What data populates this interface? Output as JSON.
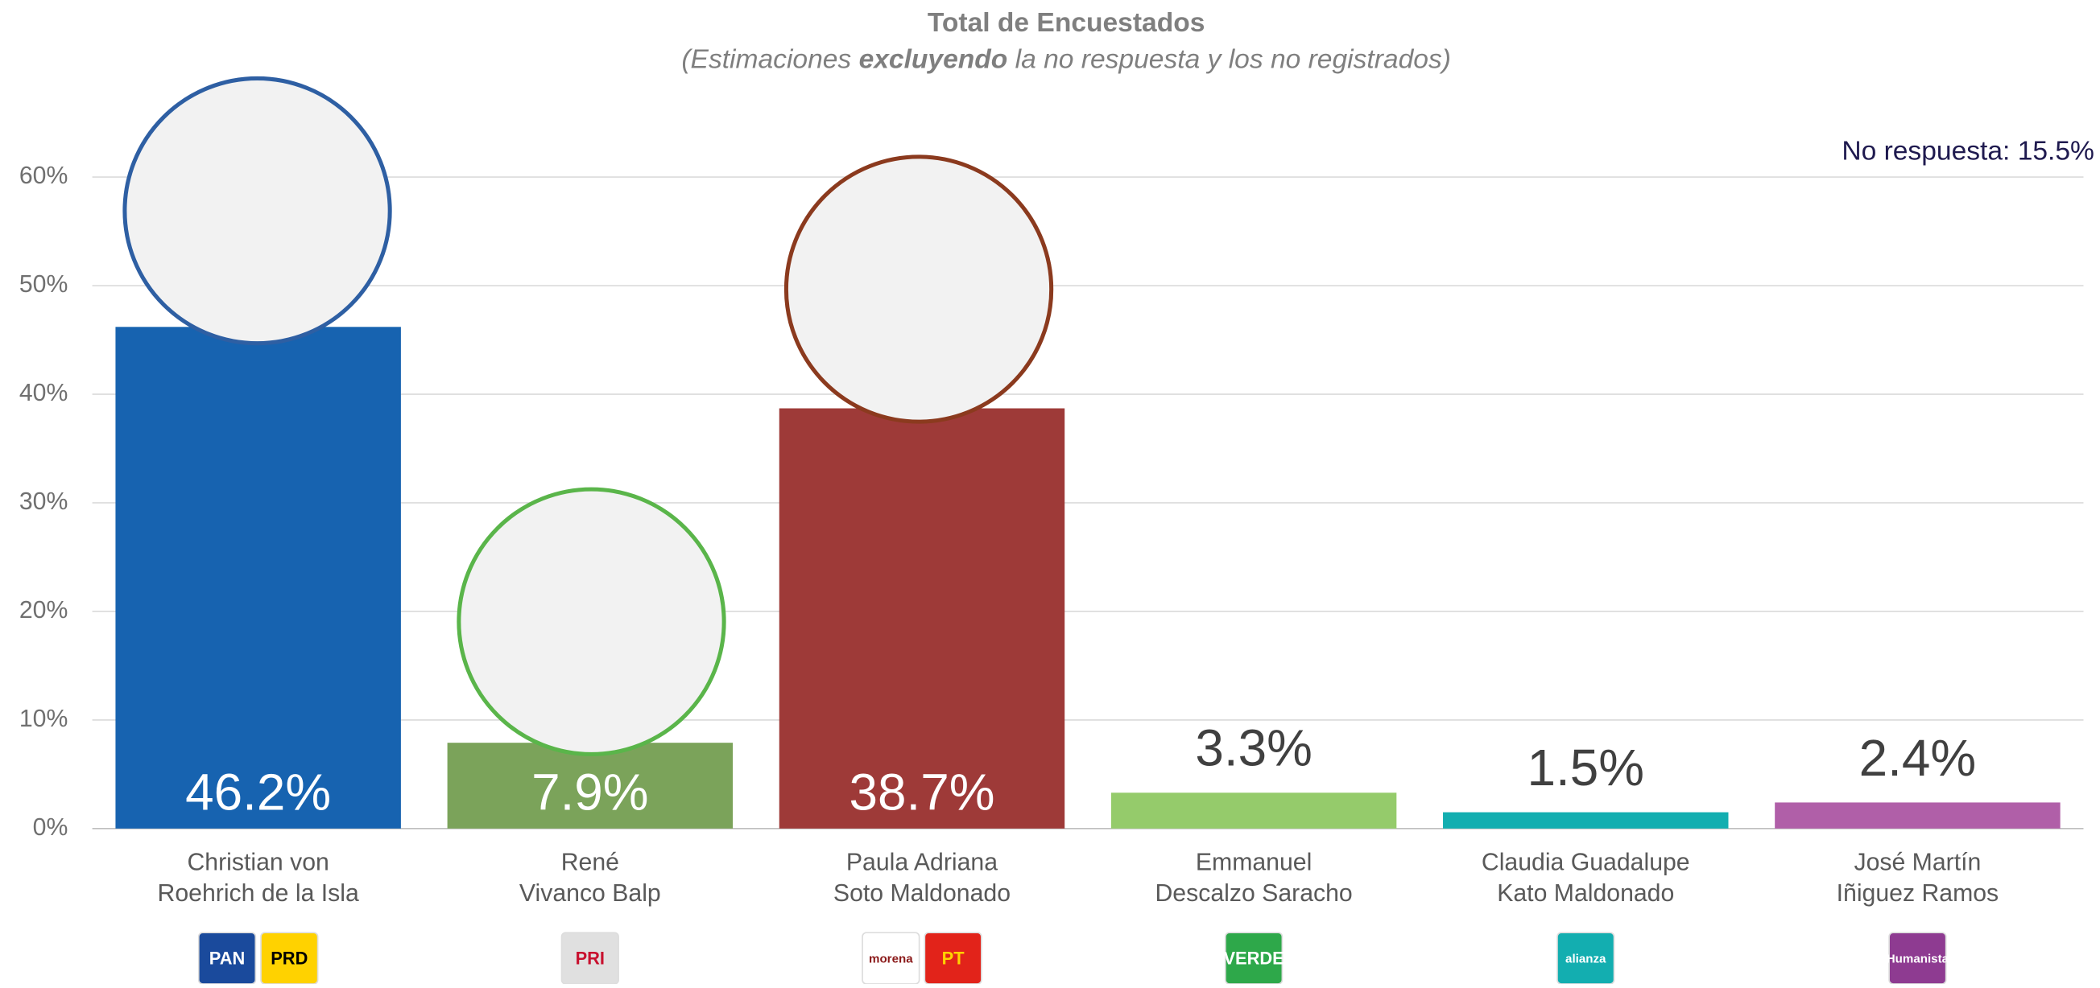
{
  "chart_data": {
    "type": "bar",
    "title": "Total de Encuestados",
    "subtitle": [
      "(Estimaciones ",
      "excluyendo",
      " la no respuesta y los no registrados)"
    ],
    "annotation": "No respuesta: 15.5%",
    "categories": [
      [
        "Christian von",
        "Roehrich de la Isla"
      ],
      [
        "René",
        "Vivanco Balp"
      ],
      [
        "Paula Adriana",
        "Soto Maldonado"
      ],
      [
        "Emmanuel",
        "Descalzo Saracho"
      ],
      [
        "Claudia Guadalupe",
        "Kato Maldonado"
      ],
      [
        "José Martín",
        "Iñiguez Ramos"
      ]
    ],
    "values": [
      46.2,
      7.9,
      38.7,
      3.3,
      1.5,
      2.4
    ],
    "value_labels": [
      "46.2%",
      "7.9%",
      "38.7%",
      "3.3%",
      "1.5%",
      "2.4%"
    ],
    "colors": [
      "#1763b0",
      "#7ba35a",
      "#9e3a38",
      "#95cb6b",
      "#13aeb0",
      "#b05fa8"
    ],
    "logos": [
      [
        "PAN",
        "PRD"
      ],
      [
        "PRI"
      ],
      [
        "morena",
        "PT"
      ],
      [
        "VERDE"
      ],
      [
        "alianza"
      ],
      [
        "Humanista"
      ]
    ],
    "ylim": [
      0,
      60
    ],
    "yticks": [
      {
        "value": 0,
        "label": "0%"
      },
      {
        "value": 10,
        "label": "10%"
      },
      {
        "value": 20,
        "label": "20%"
      },
      {
        "value": 30,
        "label": "30%"
      },
      {
        "value": 40,
        "label": "40%"
      },
      {
        "value": 50,
        "label": "50%"
      },
      {
        "value": 60,
        "label": "60%"
      }
    ],
    "grid": true
  }
}
